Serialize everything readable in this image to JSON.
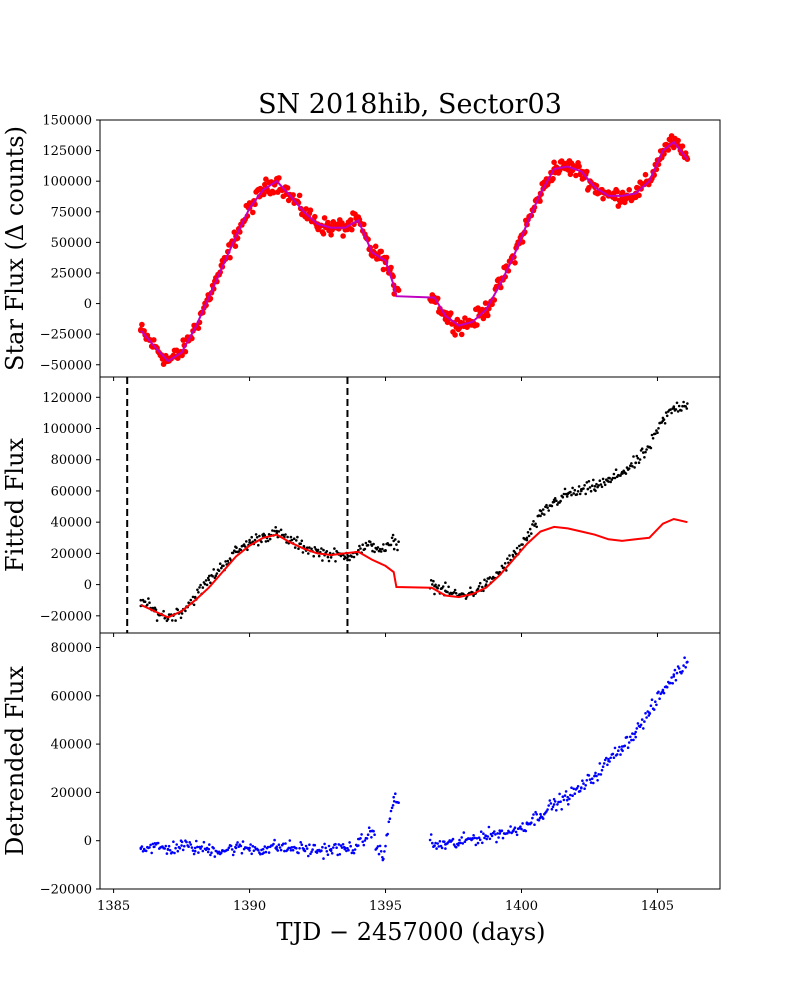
{
  "chart_data": {
    "type": "scatter",
    "title": "SN 2018hib, Sector03",
    "xlabel": "TJD − 2457000 (days)",
    "xlim": [
      1384.5,
      1407.3
    ],
    "xticks": [
      1385,
      1390,
      1395,
      1400,
      1405
    ],
    "gap": [
      1395.5,
      1396.6
    ],
    "panels": [
      {
        "ylabel": "Star Flux (Δ counts)",
        "ylim": [
          -60000,
          150000
        ],
        "yticks": [
          -50000,
          -25000,
          0,
          25000,
          50000,
          75000,
          100000,
          125000,
          150000
        ],
        "series": [
          {
            "style": "points",
            "color": "#ff0000",
            "x": [
              1386.0,
              1386.5,
              1387.0,
              1387.5,
              1388.0,
              1388.5,
              1389.0,
              1389.5,
              1390.0,
              1390.5,
              1391.0,
              1391.5,
              1392.0,
              1392.5,
              1393.0,
              1393.5,
              1394.0,
              1394.5,
              1395.0,
              1395.3,
              1396.8,
              1397.2,
              1397.7,
              1398.2,
              1398.7,
              1399.2,
              1399.7,
              1400.2,
              1400.7,
              1401.2,
              1401.7,
              1402.2,
              1402.7,
              1403.2,
              1403.7,
              1404.2,
              1404.7,
              1405.2,
              1405.6,
              1406.1
            ],
            "y": [
              -22000,
              -35000,
              -47000,
              -40000,
              -20000,
              5000,
              30000,
              55000,
              78000,
              93000,
              100000,
              88000,
              75000,
              65000,
              62000,
              62000,
              68000,
              42000,
              35000,
              15000,
              5000,
              -10000,
              -18000,
              -15000,
              -5000,
              15000,
              38000,
              65000,
              90000,
              110000,
              112000,
              108000,
              95000,
              88000,
              88000,
              90000,
              100000,
              125000,
              132000,
              118000
            ],
            "scatter": 6000
          }
        ]
      },
      {
        "ylabel": "Fitted Flux",
        "ylim": [
          -31000,
          133000
        ],
        "yticks": [
          -20000,
          0,
          20000,
          40000,
          60000,
          80000,
          100000,
          120000
        ],
        "vlines": [
          1385.5,
          1393.6
        ],
        "series": [
          {
            "style": "points",
            "color": "#000000",
            "x": [
              1386.0,
              1386.5,
              1387.0,
              1387.5,
              1388.0,
              1388.5,
              1389.0,
              1389.5,
              1390.0,
              1390.5,
              1391.0,
              1391.5,
              1392.0,
              1392.5,
              1393.0,
              1393.5,
              1394.0,
              1394.5,
              1395.0,
              1395.3,
              1396.8,
              1397.2,
              1397.7,
              1398.2,
              1398.7,
              1399.2,
              1399.7,
              1400.2,
              1400.7,
              1401.2,
              1401.7,
              1402.2,
              1402.7,
              1403.2,
              1403.7,
              1404.2,
              1404.7,
              1405.2,
              1405.6,
              1406.1
            ],
            "y": [
              -10000,
              -17000,
              -21000,
              -17000,
              -8000,
              3000,
              12000,
              21000,
              27000,
              31000,
              33000,
              28000,
              24000,
              21000,
              19000,
              18000,
              22000,
              25000,
              22000,
              28000,
              -1000,
              -4000,
              -7000,
              -5000,
              0,
              8000,
              18000,
              30000,
              44000,
              53000,
              58000,
              60000,
              63000,
              66000,
              72000,
              78000,
              88000,
              105000,
              113000,
              116000
            ],
            "scatter": 3500
          },
          {
            "style": "line",
            "color": "#ff0000",
            "x": [
              1386.0,
              1386.5,
              1387.0,
              1387.5,
              1388.0,
              1388.5,
              1389.0,
              1389.5,
              1390.0,
              1390.5,
              1391.0,
              1391.5,
              1392.0,
              1392.5,
              1393.0,
              1393.5,
              1394.0,
              1394.5,
              1395.0,
              1395.3,
              1395.4,
              1396.7,
              1397.2,
              1397.7,
              1398.2,
              1398.7,
              1399.2,
              1399.7,
              1400.2,
              1400.7,
              1401.2,
              1401.7,
              1402.2,
              1402.7,
              1403.2,
              1403.7,
              1404.2,
              1404.7,
              1405.2,
              1405.6,
              1406.1
            ],
            "y": [
              -13000,
              -17000,
              -21000,
              -17000,
              -10000,
              -2000,
              8000,
              18000,
              25000,
              30000,
              32000,
              27000,
              23000,
              20000,
              19000,
              20000,
              21000,
              16000,
              12000,
              8000,
              -1500,
              -2000,
              -7000,
              -8000,
              -6000,
              -2000,
              6000,
              16000,
              26000,
              34000,
              37000,
              36000,
              34000,
              32000,
              29000,
              28000,
              29000,
              30000,
              39000,
              42000,
              40000
            ]
          }
        ]
      },
      {
        "ylabel": "Detrended Flux",
        "ylim": [
          -20000,
          86000
        ],
        "yticks": [
          -20000,
          0,
          20000,
          40000,
          60000,
          80000
        ],
        "series": [
          {
            "style": "points",
            "color": "#0000ff",
            "x": [
              1386.0,
              1386.5,
              1387.0,
              1387.5,
              1388.0,
              1388.5,
              1389.0,
              1389.5,
              1390.0,
              1390.5,
              1391.0,
              1391.5,
              1392.0,
              1392.5,
              1393.0,
              1393.5,
              1394.0,
              1394.5,
              1394.9,
              1395.3,
              1396.8,
              1397.2,
              1397.7,
              1398.2,
              1398.7,
              1399.2,
              1399.7,
              1400.2,
              1400.7,
              1401.2,
              1401.7,
              1402.2,
              1402.7,
              1403.2,
              1403.7,
              1404.2,
              1404.7,
              1405.2,
              1405.6,
              1406.1
            ],
            "y": [
              -3000,
              -2500,
              -3500,
              -2000,
              -3000,
              -3500,
              -4000,
              -3000,
              -3000,
              -3500,
              -2500,
              -3000,
              -3500,
              -4000,
              -3500,
              -3500,
              -2000,
              4000,
              -8000,
              18000,
              -2000,
              -1500,
              -1000,
              1000,
              2000,
              3000,
              4000,
              7000,
              11000,
              15000,
              18000,
              22000,
              27000,
              33000,
              39000,
              45000,
              53000,
              62000,
              68000,
              74000
            ],
            "scatter": 2500
          }
        ]
      }
    ]
  }
}
